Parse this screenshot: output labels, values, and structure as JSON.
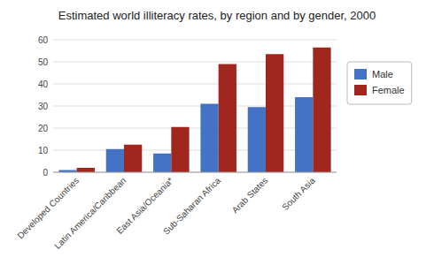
{
  "chart_data": {
    "type": "bar",
    "title": "Estimated world illiteracy rates, by region and by gender, 2000",
    "categories": [
      "Developed Countries",
      "Latin America/Caribbean",
      "East Asia/Oceania*",
      "Sub-Saharan Africa",
      "Arab States",
      "South Asia"
    ],
    "series": [
      {
        "name": "Male",
        "color": "#4472C4",
        "values": [
          1,
          10.5,
          8.5,
          31,
          29.5,
          34
        ]
      },
      {
        "name": "Female",
        "color": "#A0261E",
        "values": [
          2,
          12.5,
          20.5,
          49,
          53.5,
          56.5
        ]
      }
    ],
    "ylim": [
      0,
      60
    ],
    "yticks": [
      0,
      10,
      20,
      30,
      40,
      50,
      60
    ],
    "grid": true,
    "legend": "right"
  }
}
